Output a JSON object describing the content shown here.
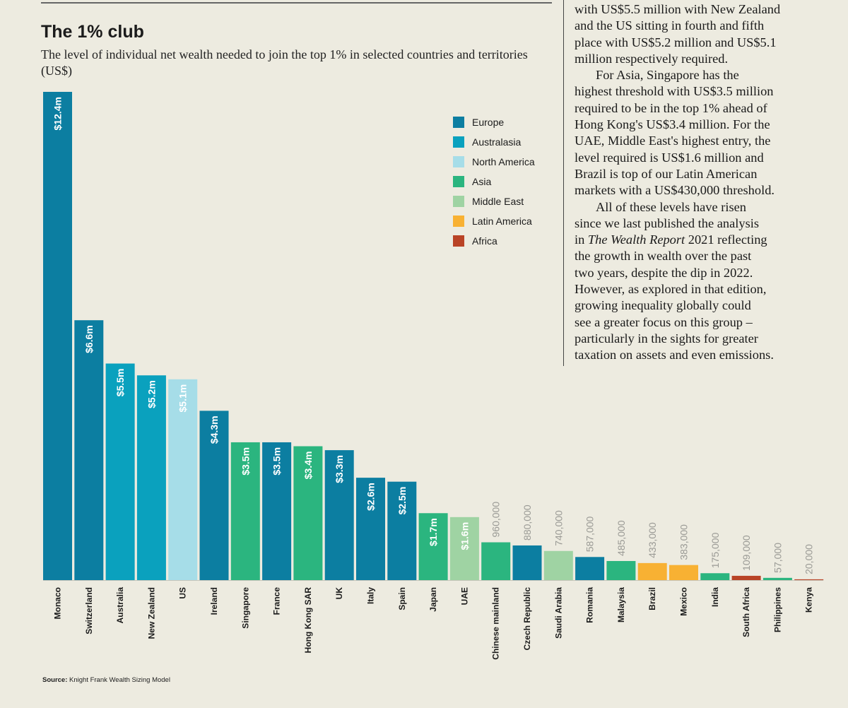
{
  "chart_title": "The 1% club",
  "chart_subtitle": "The level of individual net wealth needed to join the top 1% in selected countries and territories (US$)",
  "source": {
    "label": "Source:",
    "text": "Knight Frank Wealth Sizing Model"
  },
  "article": {
    "p1_lines": [
      "with US$5.5 million with New Zealand",
      "and the US sitting in fourth and fifth",
      "place with US$5.2 million and US$5.1",
      "million respectively required."
    ],
    "p2_lines": [
      "For Asia, Singapore has the",
      "highest threshold with US$3.5 million",
      "required to be in the top 1% ahead of",
      "Hong Kong's US$3.4 million. For the",
      "UAE, Middle East's highest entry, the",
      "level required is US$1.6 million and",
      "Brazil is top of our Latin American",
      "markets with a US$430,000 threshold."
    ],
    "p3_line1": "All of these levels have risen",
    "p3_line2": "since we last published the analysis",
    "p3_line3_before": "in ",
    "p3_line3_italic": "The Wealth Report",
    "p3_line3_after": " 2021 reflecting",
    "p3_rest_lines": [
      "the growth in wealth over the past",
      "two years, despite the dip in 2022.",
      "However, as explored in that edition,",
      "growing inequality globally could",
      "see a greater focus on this group –",
      "particularly in the sights for greater",
      "taxation on assets and even emissions."
    ]
  },
  "legend": [
    {
      "label": "Europe",
      "color": "#0c7ea1"
    },
    {
      "label": "Australasia",
      "color": "#0aa1be"
    },
    {
      "label": "North America",
      "color": "#a6dde8"
    },
    {
      "label": "Asia",
      "color": "#2bb57f"
    },
    {
      "label": "Middle East",
      "color": "#9fd3a3"
    },
    {
      "label": "Latin America",
      "color": "#f8b133"
    },
    {
      "label": "Africa",
      "color": "#b94326"
    }
  ],
  "chart_data": {
    "type": "bar",
    "title": "The 1% club",
    "ylabel": "US$",
    "ylim": [
      0,
      12400000
    ],
    "categories": [
      "Monaco",
      "Switzerland",
      "Australia",
      "New Zealand",
      "US",
      "Ireland",
      "Singapore",
      "France",
      "Hong Kong SAR",
      "UK",
      "Italy",
      "Spain",
      "Japan",
      "UAE",
      "Chinese mainland",
      "Czech Republic",
      "Saudi Arabia",
      "Romania",
      "Malaysia",
      "Brazil",
      "Mexico",
      "India",
      "South Africa",
      "Philippines",
      "Kenya"
    ],
    "values": [
      12400000,
      6600000,
      5500000,
      5200000,
      5100000,
      4300000,
      3500000,
      3500000,
      3400000,
      3300000,
      2600000,
      2500000,
      1700000,
      1600000,
      960000,
      880000,
      740000,
      587000,
      485000,
      433000,
      383000,
      175000,
      109000,
      57000,
      20000
    ],
    "labels": [
      "$12.4m",
      "$6.6m",
      "$5.5m",
      "$5.2m",
      "$5.1m",
      "$4.3m",
      "$3.5m",
      "$3.5m",
      "$3.4m",
      "$3.3m",
      "$2.6m",
      "$2.5m",
      "$1.7m",
      "$1.6m",
      "960,000",
      "880,000",
      "740,000",
      "587,000",
      "485,000",
      "433,000",
      "383,000",
      "175,000",
      "109,000",
      "57,000",
      "20,000"
    ],
    "regions": [
      "Europe",
      "Europe",
      "Australasia",
      "Australasia",
      "North America",
      "Europe",
      "Asia",
      "Europe",
      "Asia",
      "Europe",
      "Europe",
      "Europe",
      "Asia",
      "Middle East",
      "Asia",
      "Europe",
      "Middle East",
      "Europe",
      "Asia",
      "Latin America",
      "Latin America",
      "Asia",
      "Africa",
      "Asia",
      "Africa"
    ],
    "label_inside": [
      true,
      true,
      true,
      true,
      true,
      true,
      true,
      true,
      true,
      true,
      true,
      true,
      true,
      true,
      false,
      false,
      false,
      false,
      false,
      false,
      false,
      false,
      false,
      false,
      false
    ],
    "inside_label_color": "#ffffff",
    "outside_label_color": "#9a9a95",
    "category_label_color": "#1b1b1b",
    "baseline_color": "#c8c6bb"
  }
}
